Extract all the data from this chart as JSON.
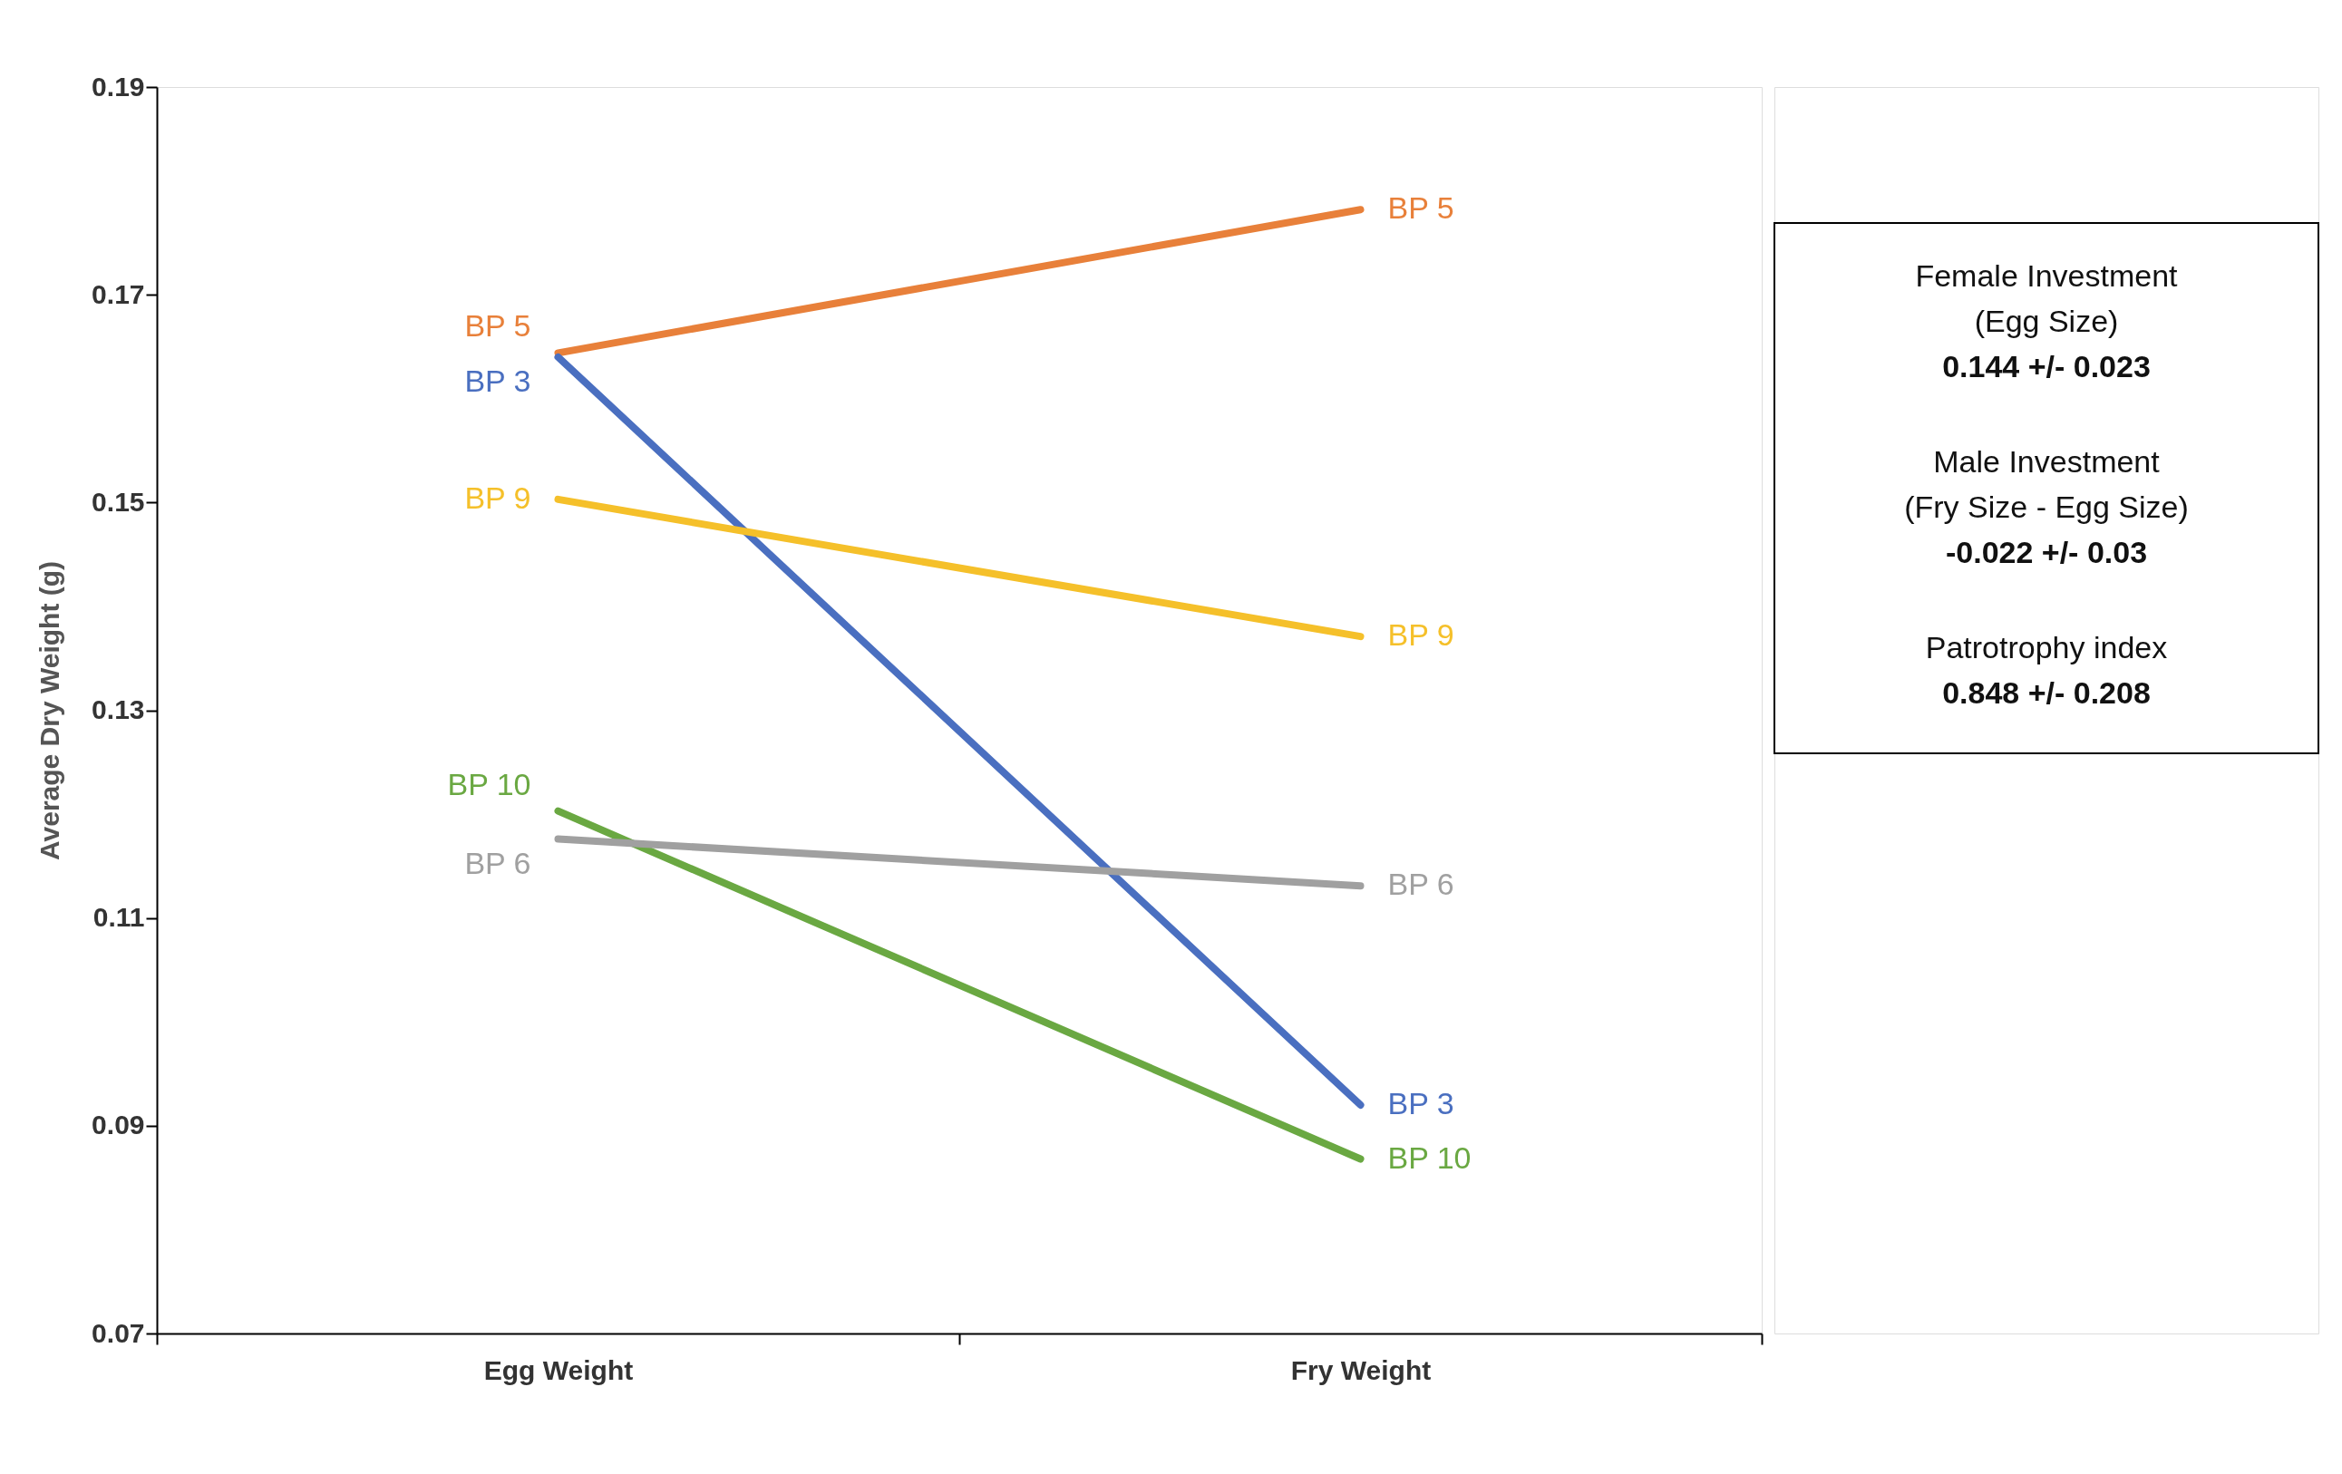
{
  "chart_data": {
    "type": "line",
    "ylabel": "Average Dry Weight (g)",
    "categories": [
      "Egg Weight",
      "Fry Weight"
    ],
    "series": [
      {
        "name": "BP 5",
        "color": "#e8803a",
        "values": [
          0.1644,
          0.1782
        ]
      },
      {
        "name": "BP 3",
        "color": "#4a6fc0",
        "values": [
          0.164,
          0.092
        ]
      },
      {
        "name": "BP 9",
        "color": "#f5c02a",
        "values": [
          0.1503,
          0.1371
        ]
      },
      {
        "name": "BP 10",
        "color": "#6aa842",
        "values": [
          0.1203,
          0.0868
        ]
      },
      {
        "name": "BP 6",
        "color": "#a0a0a0",
        "values": [
          0.1176,
          0.1131
        ]
      }
    ],
    "ylim": [
      0.07,
      0.19
    ],
    "yticks": [
      0.07,
      0.09,
      0.11,
      0.13,
      0.15,
      0.17,
      0.19
    ],
    "grid": false,
    "marker": "none",
    "line_style": "solid",
    "annotations": [
      "Female Investment\n(Egg Size)\n0.144  +/- 0.023",
      "Male Investment\n(Fry Size - Egg Size)\n-0.022  +/- 0.03",
      "Patrotrophy index\n0.848  +/- 0.208"
    ]
  }
}
